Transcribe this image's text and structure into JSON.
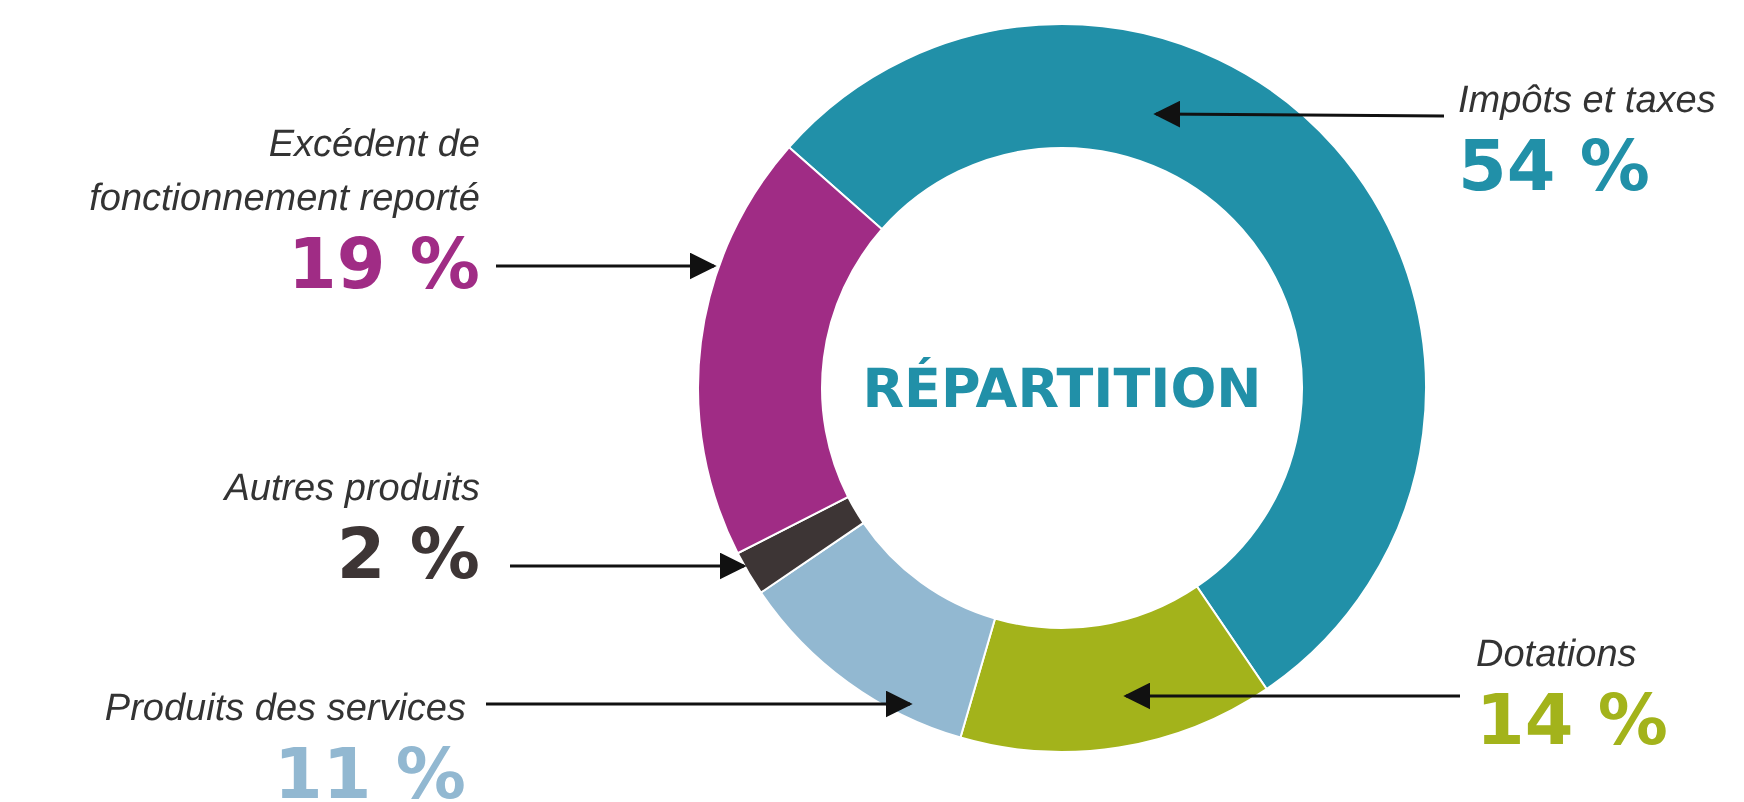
{
  "chart_data": {
    "type": "donut",
    "title": "RÉPARTITION",
    "categories": [
      "Impôts et taxes",
      "Dotations",
      "Produits des services",
      "Autres produits",
      "Excédent de fonctionnement reporté"
    ],
    "values": [
      54,
      14,
      11,
      2,
      19
    ],
    "colors": [
      "#2190a8",
      "#a3b31b",
      "#92b8d1",
      "#3d3535",
      "#a02c85"
    ],
    "value_labels": [
      "54 %",
      "14 %",
      "11 %",
      "2 %",
      "19 %"
    ],
    "legend": false
  }
}
